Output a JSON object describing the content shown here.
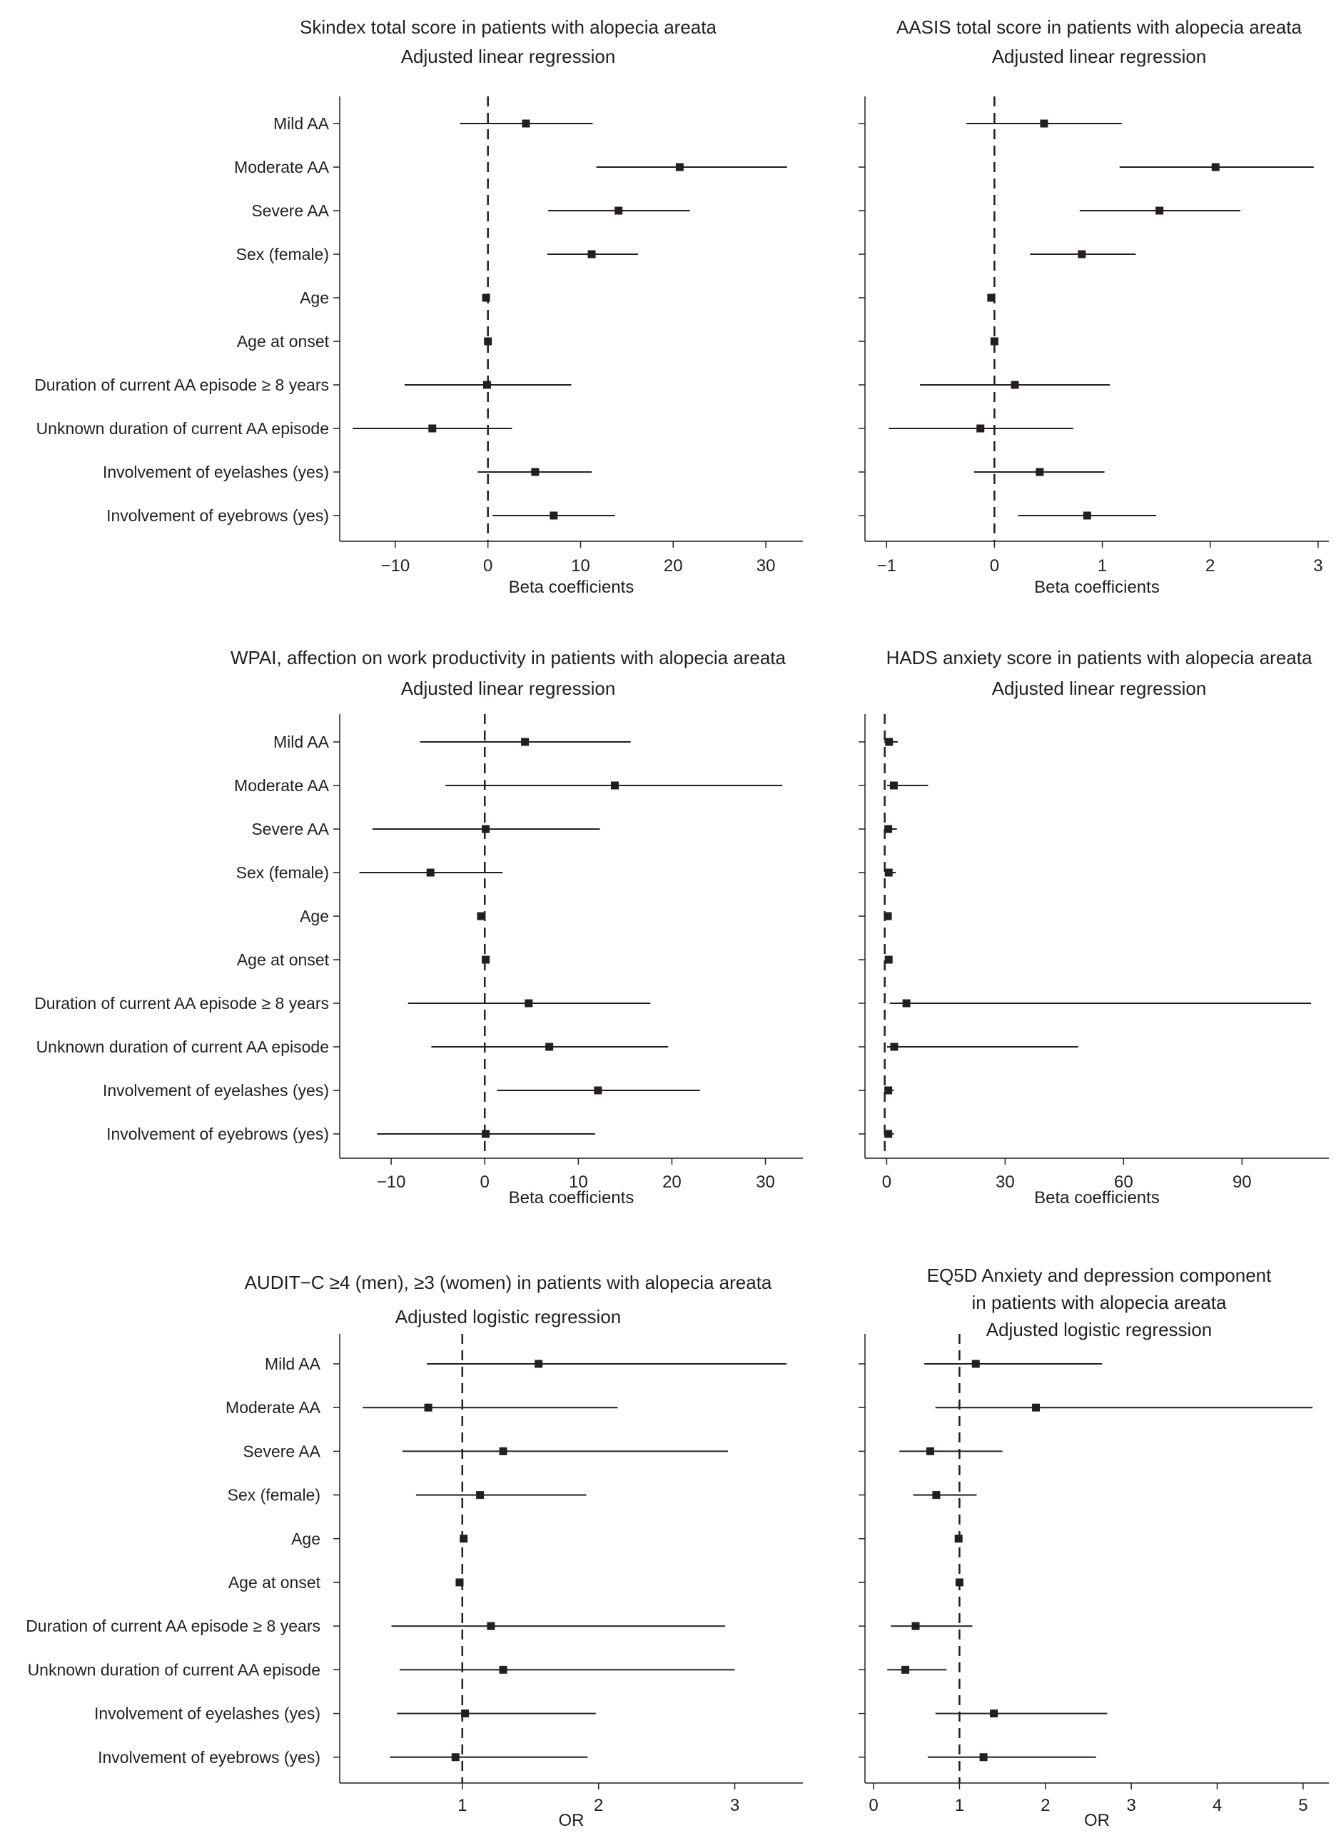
{
  "colors": {
    "ink": "#231f20",
    "background": "#ffffff"
  },
  "chart_data": [
    {
      "type": "forest",
      "title_lines": [
        "Skindex total score in patients with alopecia areata",
        "Adjusted linear regression"
      ],
      "xlabel": "Beta coefficients",
      "xlim": [
        -16,
        34
      ],
      "xticks": [
        -10,
        0,
        10,
        20,
        30
      ],
      "xtick_labels": [
        "−10",
        "0",
        "10",
        "20",
        "30"
      ],
      "reference": 0,
      "rows": [
        {
          "label": "Mild AA",
          "estimate": 4.1,
          "lower": -3.0,
          "upper": 11.3
        },
        {
          "label": "Moderate AA",
          "estimate": 20.7,
          "lower": 11.7,
          "upper": 32.3
        },
        {
          "label": "Severe AA",
          "estimate": 14.1,
          "lower": 6.5,
          "upper": 21.8
        },
        {
          "label": "Sex (female)",
          "estimate": 11.2,
          "lower": 6.4,
          "upper": 16.2
        },
        {
          "label": "Age",
          "estimate": -0.2,
          "lower": -0.4,
          "upper": 0.1
        },
        {
          "label": "Age at onset",
          "estimate": 0.0,
          "lower": -0.2,
          "upper": 0.2
        },
        {
          "label": "Duration of current AA episode ≥ 8 years",
          "estimate": -0.1,
          "lower": -9.0,
          "upper": 9.0
        },
        {
          "label": "Unknown duration of current AA episode",
          "estimate": -6.0,
          "lower": -14.6,
          "upper": 2.6
        },
        {
          "label": "Involvement of eyelashes (yes)",
          "estimate": 5.1,
          "lower": -1.1,
          "upper": 11.2
        },
        {
          "label": "Involvement of eyebrows (yes)",
          "estimate": 7.1,
          "lower": 0.5,
          "upper": 13.7
        }
      ]
    },
    {
      "type": "forest",
      "title_lines": [
        "AASIS total score in patients with alopecia areata",
        "Adjusted linear regression"
      ],
      "xlabel": "Beta coefficients",
      "xlim": [
        -1.2,
        3.1
      ],
      "xticks": [
        -1,
        0,
        1,
        2,
        3
      ],
      "xtick_labels": [
        "−1",
        "0",
        "1",
        "2",
        "3"
      ],
      "reference": 0,
      "rows": [
        {
          "label": "Mild AA",
          "estimate": 0.46,
          "lower": -0.26,
          "upper": 1.18
        },
        {
          "label": "Moderate AA",
          "estimate": 2.05,
          "lower": 1.16,
          "upper": 2.96
        },
        {
          "label": "Severe AA",
          "estimate": 1.53,
          "lower": 0.79,
          "upper": 2.28
        },
        {
          "label": "Sex (female)",
          "estimate": 0.81,
          "lower": 0.33,
          "upper": 1.31
        },
        {
          "label": "Age",
          "estimate": -0.03,
          "lower": -0.05,
          "upper": -0.01
        },
        {
          "label": "Age at onset",
          "estimate": 0.0,
          "lower": -0.02,
          "upper": 0.02
        },
        {
          "label": "Duration of current AA episode ≥ 8 years",
          "estimate": 0.19,
          "lower": -0.69,
          "upper": 1.07
        },
        {
          "label": "Unknown duration of current AA episode",
          "estimate": -0.13,
          "lower": -0.98,
          "upper": 0.73
        },
        {
          "label": "Involvement of eyelashes (yes)",
          "estimate": 0.42,
          "lower": -0.19,
          "upper": 1.02
        },
        {
          "label": "Involvement of eyebrows (yes)",
          "estimate": 0.86,
          "lower": 0.22,
          "upper": 1.5
        }
      ]
    },
    {
      "type": "forest",
      "title_lines": [
        "WPAI, affection on work productivity in patients with alopecia areata",
        "Adjusted linear regression"
      ],
      "xlabel": "Beta coefficients",
      "xlim": [
        -15.5,
        34
      ],
      "xticks": [
        -10,
        0,
        10,
        20,
        30
      ],
      "xtick_labels": [
        "−10",
        "0",
        "10",
        "20",
        "30"
      ],
      "reference": 0,
      "rows": [
        {
          "label": "Mild AA",
          "estimate": 4.3,
          "lower": -6.9,
          "upper": 15.6
        },
        {
          "label": "Moderate AA",
          "estimate": 13.9,
          "lower": -4.2,
          "upper": 31.8
        },
        {
          "label": "Severe AA",
          "estimate": 0.1,
          "lower": -12.0,
          "upper": 12.3
        },
        {
          "label": "Sex (female)",
          "estimate": -5.8,
          "lower": -13.4,
          "upper": 1.9
        },
        {
          "label": "Age",
          "estimate": -0.4,
          "lower": -0.7,
          "upper": -0.1
        },
        {
          "label": "Age at onset",
          "estimate": 0.1,
          "lower": -0.1,
          "upper": 0.3
        },
        {
          "label": "Duration of current AA episode ≥ 8 years",
          "estimate": 4.7,
          "lower": -8.2,
          "upper": 17.7
        },
        {
          "label": "Unknown duration of current AA episode",
          "estimate": 6.9,
          "lower": -5.7,
          "upper": 19.6
        },
        {
          "label": "Involvement of eyelashes (yes)",
          "estimate": 12.1,
          "lower": 1.3,
          "upper": 23.0
        },
        {
          "label": "Involvement of eyebrows (yes)",
          "estimate": 0.1,
          "lower": -11.5,
          "upper": 11.8
        }
      ]
    },
    {
      "type": "forest",
      "title_lines": [
        "HADS anxiety score in patients with alopecia areata",
        "Adjusted linear regression"
      ],
      "xlabel": "Beta coefficients",
      "xlim": [
        -5.5,
        112
      ],
      "xticks": [
        0,
        30,
        60,
        90
      ],
      "xtick_labels": [
        "0",
        "30",
        "60",
        "90"
      ],
      "reference": -0.5,
      "rows": [
        {
          "label": "Mild AA",
          "estimate": 0.6,
          "lower": -0.6,
          "upper": 2.8
        },
        {
          "label": "Moderate AA",
          "estimate": 1.8,
          "lower": 0.1,
          "upper": 10.5
        },
        {
          "label": "Severe AA",
          "estimate": 0.4,
          "lower": -0.5,
          "upper": 2.6
        },
        {
          "label": "Sex (female)",
          "estimate": 0.5,
          "lower": -0.3,
          "upper": 2.3
        },
        {
          "label": "Age",
          "estimate": 0.3,
          "lower": 0.1,
          "upper": 0.5
        },
        {
          "label": "Age at onset",
          "estimate": 0.5,
          "lower": 0.3,
          "upper": 0.7
        },
        {
          "label": "Duration of current AA episode ≥ 8 years",
          "estimate": 5.0,
          "lower": 0.8,
          "upper": 107.5
        },
        {
          "label": "Unknown duration of current AA episode",
          "estimate": 1.9,
          "lower": 0.1,
          "upper": 48.5
        },
        {
          "label": "Involvement of eyelashes (yes)",
          "estimate": 0.4,
          "lower": -0.3,
          "upper": 1.8
        },
        {
          "label": "Involvement of eyebrows (yes)",
          "estimate": 0.4,
          "lower": -0.3,
          "upper": 1.8
        }
      ]
    },
    {
      "type": "forest",
      "title_lines": [
        "AUDIT−C ≥4 (men), ≥3 (women) in patients with alopecia areata",
        "Adjusted logistic regression"
      ],
      "xlabel": "OR",
      "xlim": [
        0.1,
        3.5
      ],
      "xticks": [
        1,
        2,
        3
      ],
      "xtick_labels": [
        "1",
        "2",
        "3"
      ],
      "reference": 1,
      "rows": [
        {
          "label": "Mild AA",
          "estimate": 1.56,
          "lower": 0.74,
          "upper": 3.38
        },
        {
          "label": "Moderate AA",
          "estimate": 0.75,
          "lower": 0.27,
          "upper": 2.14
        },
        {
          "label": "Severe AA",
          "estimate": 1.3,
          "lower": 0.56,
          "upper": 2.95
        },
        {
          "label": "Sex (female)",
          "estimate": 1.13,
          "lower": 0.66,
          "upper": 1.91
        },
        {
          "label": "Age",
          "estimate": 1.01,
          "lower": 0.99,
          "upper": 1.03
        },
        {
          "label": "Age at onset",
          "estimate": 0.98,
          "lower": 0.96,
          "upper": 1.0
        },
        {
          "label": "Duration of current AA episode ≥ 8 years",
          "estimate": 1.21,
          "lower": 0.48,
          "upper": 2.93
        },
        {
          "label": "Unknown duration of current AA episode",
          "estimate": 1.3,
          "lower": 0.54,
          "upper": 3.0
        },
        {
          "label": "Involvement of eyelashes (yes)",
          "estimate": 1.02,
          "lower": 0.52,
          "upper": 1.98
        },
        {
          "label": "Involvement of eyebrows (yes)",
          "estimate": 0.95,
          "lower": 0.47,
          "upper": 1.92
        }
      ]
    },
    {
      "type": "forest",
      "title_lines": [
        "EQ5D Anxiety and depression component",
        "in patients with alopecia areata",
        "Adjusted logistic regression"
      ],
      "xlabel": "OR",
      "xlim": [
        -0.1,
        5.3
      ],
      "xticks": [
        0,
        1,
        2,
        3,
        4,
        5
      ],
      "xtick_labels": [
        "0",
        "1",
        "2",
        "3",
        "4",
        "5"
      ],
      "reference": 1,
      "rows": [
        {
          "label": "Mild AA",
          "estimate": 1.19,
          "lower": 0.59,
          "upper": 2.66
        },
        {
          "label": "Moderate AA",
          "estimate": 1.89,
          "lower": 0.72,
          "upper": 5.11
        },
        {
          "label": "Severe AA",
          "estimate": 0.66,
          "lower": 0.3,
          "upper": 1.5
        },
        {
          "label": "Sex (female)",
          "estimate": 0.73,
          "lower": 0.46,
          "upper": 1.2
        },
        {
          "label": "Age",
          "estimate": 0.99,
          "lower": 0.97,
          "upper": 1.01
        },
        {
          "label": "Age at onset",
          "estimate": 1.0,
          "lower": 0.98,
          "upper": 1.02
        },
        {
          "label": "Duration of current AA episode ≥ 8 years",
          "estimate": 0.49,
          "lower": 0.2,
          "upper": 1.15
        },
        {
          "label": "Unknown duration of current AA episode",
          "estimate": 0.37,
          "lower": 0.16,
          "upper": 0.85
        },
        {
          "label": "Involvement of eyelashes (yes)",
          "estimate": 1.4,
          "lower": 0.72,
          "upper": 2.72
        },
        {
          "label": "Involvement of eyebrows (yes)",
          "estimate": 1.28,
          "lower": 0.63,
          "upper": 2.59
        }
      ]
    }
  ]
}
